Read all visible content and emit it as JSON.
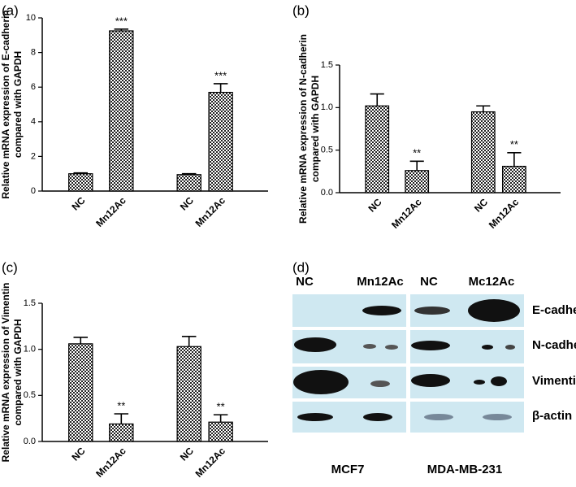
{
  "chart_data": [
    {
      "type": "bar",
      "panel_label": "(a)",
      "ylabel": [
        "Relative mRNA expression of E-cadherin",
        "compared with GAPDH"
      ],
      "categories": [
        "NC",
        "Mn12Ac",
        "NC",
        "Mn12Ac"
      ],
      "values": [
        1.0,
        9.25,
        0.95,
        5.7
      ],
      "errors": [
        0.05,
        0.1,
        0.05,
        0.5
      ],
      "annotations": [
        null,
        "***",
        null,
        "***"
      ],
      "color": "#222222",
      "ylim": [
        0,
        10
      ],
      "yticks": [
        0,
        2,
        4,
        6,
        8,
        10
      ]
    },
    {
      "type": "bar",
      "panel_label": "(b)",
      "ylabel": [
        "Relative mRNA expression of N-cadherin",
        "compared with GAPDH"
      ],
      "categories": [
        "NC",
        "Mn12Ac",
        "NC",
        "Mn12Ac"
      ],
      "values": [
        1.02,
        0.26,
        0.95,
        0.31
      ],
      "errors": [
        0.14,
        0.11,
        0.07,
        0.16
      ],
      "annotations": [
        null,
        "**",
        null,
        "**"
      ],
      "color": "#222222",
      "ylim": [
        0,
        1.5
      ],
      "yticks": [
        {
          "value": 0,
          "label": "0.0"
        },
        0.5,
        {
          "value": 1,
          "label": "1.0"
        },
        1.5
      ]
    },
    {
      "type": "bar",
      "panel_label": "(c)",
      "ylabel": [
        "Relative mRNA expression of Vimentin",
        "compared with GAPDH"
      ],
      "categories": [
        "NC",
        "Mn12Ac",
        "NC",
        "Mn12Ac"
      ],
      "values": [
        1.06,
        0.19,
        1.03,
        0.21
      ],
      "errors": [
        0.07,
        0.11,
        0.11,
        0.08
      ],
      "annotations": [
        null,
        "**",
        null,
        "**"
      ],
      "color": "#222222",
      "ylim": [
        0,
        1.5
      ],
      "yticks": [
        {
          "value": 0,
          "label": "0.0"
        },
        0.5,
        {
          "value": 1,
          "label": "1.0"
        },
        1.5
      ]
    }
  ],
  "blot": {
    "panel_label": "(d)",
    "lanes": [
      "NC",
      "Mn12Ac",
      "NC",
      "Mc12Ac"
    ],
    "proteins": [
      "E-cadherin",
      "N-cadherin",
      "Vimentin",
      "β-actin"
    ],
    "cell_lines": [
      "MCF7",
      "MDA-MB-231"
    ]
  }
}
